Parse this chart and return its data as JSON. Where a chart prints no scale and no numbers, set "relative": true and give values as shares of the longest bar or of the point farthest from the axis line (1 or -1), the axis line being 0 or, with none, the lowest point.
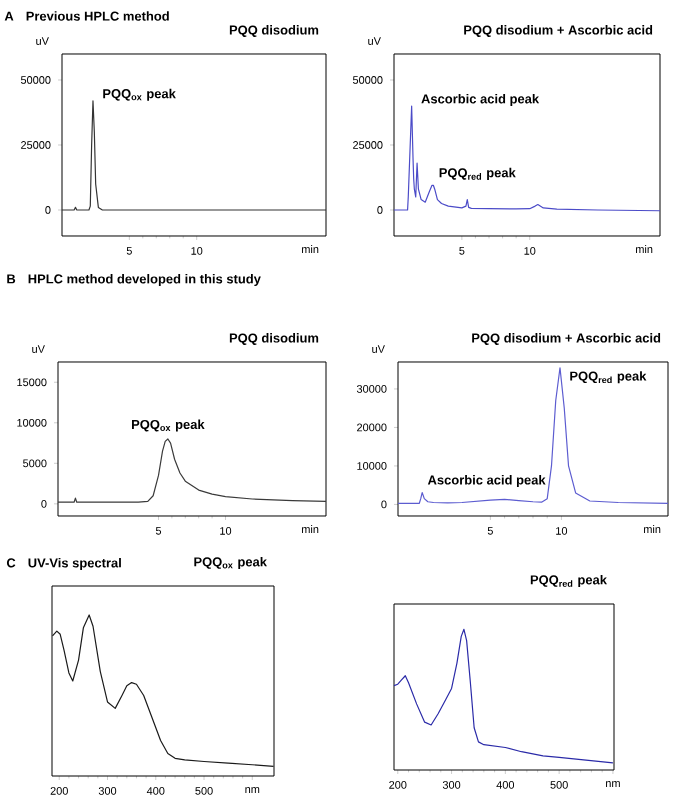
{
  "chart_data": [
    {
      "type": "line",
      "title": "PQQ disodium",
      "ylabel": "uV",
      "xlabel": "min",
      "xlim": [
        0,
        19.6
      ],
      "xticks": [
        5,
        10
      ],
      "ylim": [
        -10000,
        60000
      ],
      "yticks": [
        0,
        25000,
        50000
      ],
      "color": "#333333",
      "x": [
        0,
        0.9,
        1.0,
        1.1,
        2.0,
        2.1,
        2.2,
        2.3,
        2.4,
        2.5,
        2.7,
        3.0,
        19.6
      ],
      "values": [
        0,
        0,
        1000,
        0,
        0,
        1500,
        25000,
        42000,
        30000,
        10000,
        1000,
        0,
        0
      ],
      "annotations": [
        "A",
        "Previous HPLC method",
        {
          "text": "PQQ$_{ox}$ peak",
          "x": 2.3,
          "y": 42000
        }
      ]
    },
    {
      "type": "line",
      "title": "PQQ disodium + Ascorbic acid",
      "ylabel": "uV",
      "xlabel": "min",
      "xlim": [
        0,
        19.6
      ],
      "xticks": [
        5,
        10
      ],
      "ylim": [
        -10000,
        60000
      ],
      "yticks": [
        0,
        25000,
        50000
      ],
      "color": "#4b4bc8",
      "x": [
        0,
        1.0,
        1.05,
        1.1,
        1.2,
        1.3,
        1.4,
        1.45,
        1.5,
        1.6,
        1.7,
        1.8,
        2.0,
        2.3,
        2.6,
        2.8,
        2.9,
        3.0,
        3.2,
        3.5,
        4.0,
        5.0,
        5.3,
        5.4,
        5.5,
        5.7,
        7,
        9,
        10.0,
        10.4,
        10.6,
        11.0,
        12,
        15,
        19.6
      ],
      "values": [
        0,
        0,
        5000,
        null,
        null,
        40000,
        20000,
        12000,
        8000,
        5000,
        18000,
        8000,
        4000,
        3000,
        7000,
        9500,
        9500,
        8000,
        4000,
        2500,
        1500,
        800,
        1500,
        4000,
        1000,
        600,
        500,
        400,
        500,
        1500,
        2100,
        800,
        300,
        0,
        -300
      ],
      "annotations": [
        {
          "text": "Ascorbic acid peak",
          "x": 1.3,
          "y": 40000
        },
        {
          "text": "PQQ$_{red}$ peak",
          "x": 2.9,
          "y": 9500
        }
      ]
    },
    {
      "type": "line",
      "title": "PQQ disodium",
      "ylabel": "uV",
      "xlabel": "min",
      "xlim": [
        -2.5,
        17.5
      ],
      "xticks": [
        5,
        10
      ],
      "ylim": [
        -1500,
        17500
      ],
      "yticks": [
        0,
        5000,
        10000,
        15000
      ],
      "color": "#3a3a3a",
      "x": [
        -2.5,
        -1.3,
        -1.2,
        -1.1,
        2,
        3.5,
        4.2,
        4.6,
        5.0,
        5.3,
        5.5,
        5.7,
        5.9,
        6.2,
        6.6,
        7,
        8,
        9,
        10,
        12,
        15,
        17.5
      ],
      "values": [
        200,
        200,
        700,
        200,
        200,
        200,
        300,
        1000,
        3500,
        6500,
        7700,
        8000,
        7500,
        5500,
        3800,
        2800,
        1700,
        1200,
        900,
        600,
        400,
        300
      ],
      "annotations": [
        "B",
        "HPLC method developed in this study",
        {
          "text": "PQQ$_{ox}$ peak",
          "x": 5.7,
          "y": 8000
        }
      ]
    },
    {
      "type": "line",
      "title": "PQQ disodium + Ascorbic acid",
      "ylabel": "uV",
      "xlabel": "min",
      "xlim": [
        -1.5,
        17.5
      ],
      "xticks": [
        5,
        10
      ],
      "ylim": [
        -3000,
        37000
      ],
      "yticks": [
        0,
        10000,
        20000,
        30000
      ],
      "color": "#5c5cd0",
      "x": [
        -1.5,
        0,
        0.1,
        0.2,
        0.35,
        0.6,
        1,
        2,
        3,
        4,
        5,
        6,
        7,
        8,
        8.6,
        9.0,
        9.3,
        9.6,
        9.9,
        10.2,
        10.5,
        11,
        12,
        14,
        17.5
      ],
      "values": [
        300,
        300,
        1500,
        3100,
        1500,
        700,
        500,
        400,
        500,
        800,
        1100,
        1300,
        1000,
        700,
        600,
        1500,
        10000,
        27000,
        35500,
        25000,
        10000,
        3000,
        900,
        500,
        300
      ],
      "annotations": [
        {
          "text": "Ascorbic acid peak",
          "x": 0.2,
          "y": 3100
        },
        {
          "text": "PQQ$_{red}$ peak",
          "x": 9.9,
          "y": 35500
        }
      ]
    },
    {
      "type": "line",
      "title": "PQQ$_{ox}$ peak",
      "relative": true,
      "tick_labels": "x",
      "xlim": [
        185,
        645
      ],
      "xticks": [
        200,
        300,
        400,
        500,
        {
          "value": 600,
          "label": "nm"
        }
      ],
      "color": "#1a1a1a",
      "x": [
        186,
        195,
        202,
        210,
        220,
        228,
        240,
        250,
        262,
        270,
        285,
        300,
        316,
        330,
        340,
        350,
        360,
        375,
        390,
        410,
        425,
        440,
        460,
        500,
        550,
        600,
        644
      ],
      "values": [
        0.87,
        0.9,
        0.88,
        0.78,
        0.64,
        0.59,
        0.72,
        0.92,
        1.0,
        0.93,
        0.65,
        0.46,
        0.42,
        0.5,
        0.56,
        0.58,
        0.57,
        0.5,
        0.38,
        0.22,
        0.14,
        0.11,
        0.1,
        0.09,
        0.08,
        0.07,
        0.06
      ],
      "annotations": [
        "C",
        "UV-Vis spectral"
      ]
    },
    {
      "type": "line",
      "title": "PQQ$_{red}$ peak",
      "relative": true,
      "tick_labels": "x",
      "xlim": [
        193,
        602
      ],
      "xticks": [
        200,
        300,
        400,
        500,
        {
          "value": 600,
          "label": "nm"
        }
      ],
      "color": "#2a2aa8",
      "x": [
        193,
        200,
        207,
        214,
        220,
        235,
        250,
        262,
        275,
        289,
        300,
        310,
        318,
        323,
        328,
        335,
        342,
        350,
        360,
        380,
        400,
        430,
        470,
        500,
        550,
        600
      ],
      "values": [
        0.6,
        0.61,
        0.64,
        0.67,
        0.62,
        0.47,
        0.34,
        0.32,
        0.4,
        0.5,
        0.58,
        0.76,
        0.95,
        1.0,
        0.92,
        0.62,
        0.3,
        0.2,
        0.18,
        0.17,
        0.16,
        0.13,
        0.1,
        0.09,
        0.07,
        0.05
      ]
    }
  ]
}
